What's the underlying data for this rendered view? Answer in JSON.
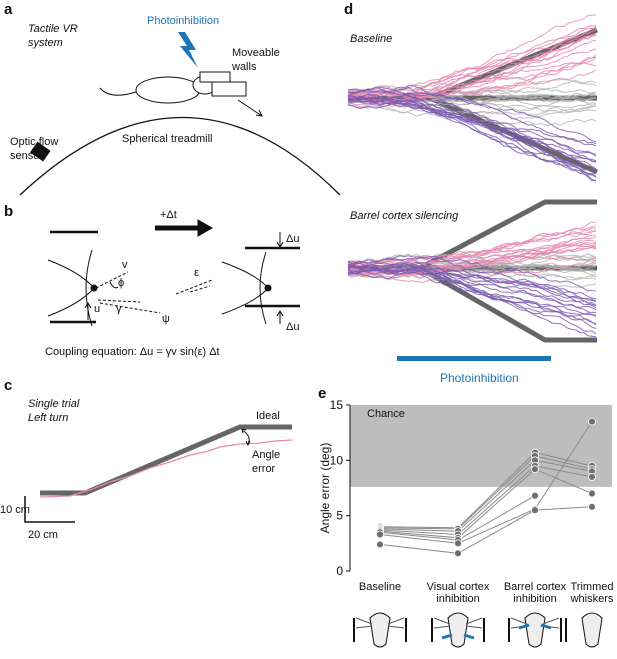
{
  "figure": {
    "a": {
      "label": "a",
      "title": [
        "Tactile VR",
        "system"
      ],
      "photo": "Photoinhibition",
      "walls": [
        "Moveable",
        "walls"
      ],
      "sensor": [
        "Optic flow",
        "sensor"
      ],
      "treadmill": "Spherical treadmill"
    },
    "b": {
      "label": "b",
      "dt": "+Δt",
      "du_top": "Δu",
      "du_bottom": "Δu",
      "v": "v",
      "phi": "ϕ",
      "eps": "ε",
      "u": "u",
      "gamma": "γ",
      "psi": "ψ",
      "equation": "Coupling equation: Δu = γv sin(ε) Δt"
    },
    "c": {
      "label": "c",
      "title": [
        "Single trial",
        "Left turn"
      ],
      "ideal": "Ideal",
      "error": [
        "Angle",
        "error"
      ],
      "scale_y": "10 cm",
      "scale_x": "20 cm"
    },
    "d": {
      "label": "d",
      "top": "Baseline",
      "bottom": "Barrel cortex silencing",
      "photo": "Photoinhibition"
    }
  },
  "chart_data": {
    "type": "line",
    "label": "e",
    "ylabel": "Angle error (deg)",
    "categories": [
      [
        "Baseline"
      ],
      [
        "Visual cortex",
        "inhibition"
      ],
      [
        "Barrel cortex",
        "inhibition"
      ],
      [
        "Trimmed",
        "whiskers"
      ]
    ],
    "ylim": [
      0,
      15
    ],
    "yticks": [
      0,
      5,
      10,
      15
    ],
    "chance": {
      "label": "Chance",
      "range": [
        7.6,
        15
      ],
      "color": "#bdbdbd"
    },
    "line_color": "#8a8a8a",
    "marker_color": "#6e6e6e",
    "series": [
      {
        "values": [
          4.0,
          3.9,
          10.7,
          9.5
        ]
      },
      {
        "values": [
          3.9,
          3.8,
          10.4,
          9.2
        ]
      },
      {
        "values": [
          3.8,
          3.6,
          10.0,
          9.0
        ]
      },
      {
        "values": [
          3.7,
          3.3,
          9.5,
          8.5
        ]
      },
      {
        "values": [
          3.6,
          3.0,
          9.2,
          7.0
        ]
      },
      {
        "values": [
          3.5,
          2.8,
          6.8,
          null
        ]
      },
      {
        "values": [
          3.3,
          2.5,
          5.6,
          13.5
        ]
      },
      {
        "values": [
          2.4,
          1.6,
          5.5,
          5.8
        ]
      }
    ]
  }
}
